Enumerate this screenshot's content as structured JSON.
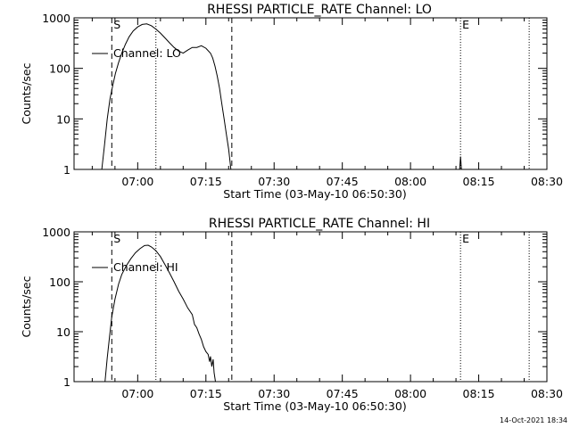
{
  "timestamp": "14-Oct-2021 18:34",
  "chart_data": [
    {
      "type": "line",
      "title": "RHESSI PARTICLE_RATE Channel: LO",
      "xlabel": "Start Time (03-May-10 06:50:30)",
      "ylabel": "Counts/sec",
      "yscale": "log",
      "ylim": [
        1,
        1000
      ],
      "xlim_minutes": [
        -4.5,
        99.5
      ],
      "xticks": [
        {
          "min": 9.5,
          "label": "07:00"
        },
        {
          "min": 24.5,
          "label": "07:15"
        },
        {
          "min": 39.5,
          "label": "07:30"
        },
        {
          "min": 54.5,
          "label": "07:45"
        },
        {
          "min": 69.5,
          "label": "08:00"
        },
        {
          "min": 84.5,
          "label": "08:15"
        },
        {
          "min": 99.5,
          "label": "08:30"
        }
      ],
      "yticks": [
        {
          "v": 1,
          "label": "1"
        },
        {
          "v": 10,
          "label": "10"
        },
        {
          "v": 100,
          "label": "100"
        },
        {
          "v": 1000,
          "label": "1000"
        }
      ],
      "legend": "Channel: LO",
      "markers": [
        {
          "min": 3.8,
          "style": "dashed",
          "label": "S"
        },
        {
          "min": 13.5,
          "style": "dotted",
          "label": ""
        },
        {
          "min": 30.2,
          "style": "dashed",
          "label": ""
        },
        {
          "min": 80.5,
          "style": "dotted",
          "label": "E"
        },
        {
          "min": 95.6,
          "style": "dotted",
          "label": ""
        }
      ],
      "series": [
        {
          "name": "Channel: LO",
          "points": [
            [
              1.6,
              1
            ],
            [
              2.2,
              3
            ],
            [
              2.8,
              10
            ],
            [
              3.4,
              25
            ],
            [
              4.0,
              45
            ],
            [
              4.6,
              80
            ],
            [
              5.3,
              130
            ],
            [
              6.0,
              200
            ],
            [
              6.8,
              300
            ],
            [
              7.6,
              420
            ],
            [
              8.5,
              550
            ],
            [
              9.5,
              660
            ],
            [
              10.5,
              740
            ],
            [
              11.5,
              760
            ],
            [
              12.5,
              700
            ],
            [
              13.5,
              600
            ],
            [
              14.5,
              500
            ],
            [
              15.5,
              400
            ],
            [
              16.5,
              320
            ],
            [
              17.5,
              260
            ],
            [
              18.5,
              220
            ],
            [
              19.5,
              200
            ],
            [
              20.5,
              230
            ],
            [
              21.5,
              260
            ],
            [
              22.5,
              260
            ],
            [
              23.5,
              280
            ],
            [
              24.5,
              250
            ],
            [
              25.5,
              200
            ],
            [
              26.0,
              160
            ],
            [
              26.5,
              110
            ],
            [
              27.0,
              70
            ],
            [
              27.5,
              40
            ],
            [
              28.0,
              20
            ],
            [
              28.5,
              10
            ],
            [
              29.0,
              5
            ],
            [
              29.5,
              2.5
            ],
            [
              30.0,
              1
            ]
          ]
        },
        {
          "name": "Channel: LO",
          "points": [
            [
              80.3,
              1
            ],
            [
              80.5,
              1.8
            ],
            [
              80.7,
              1
            ]
          ]
        }
      ]
    },
    {
      "type": "line",
      "title": "RHESSI PARTICLE_RATE Channel: HI",
      "xlabel": "Start Time (03-May-10 06:50:30)",
      "ylabel": "Counts/sec",
      "yscale": "log",
      "ylim": [
        1,
        1000
      ],
      "xlim_minutes": [
        -4.5,
        99.5
      ],
      "xticks": [
        {
          "min": 9.5,
          "label": "07:00"
        },
        {
          "min": 24.5,
          "label": "07:15"
        },
        {
          "min": 39.5,
          "label": "07:30"
        },
        {
          "min": 54.5,
          "label": "07:45"
        },
        {
          "min": 69.5,
          "label": "08:00"
        },
        {
          "min": 84.5,
          "label": "08:15"
        },
        {
          "min": 99.5,
          "label": "08:30"
        }
      ],
      "yticks": [
        {
          "v": 1,
          "label": "1"
        },
        {
          "v": 10,
          "label": "10"
        },
        {
          "v": 100,
          "label": "100"
        },
        {
          "v": 1000,
          "label": "1000"
        }
      ],
      "legend": "Channel: HI",
      "markers": [
        {
          "min": 3.8,
          "style": "dashed",
          "label": "S"
        },
        {
          "min": 13.5,
          "style": "dotted",
          "label": ""
        },
        {
          "min": 30.2,
          "style": "dashed",
          "label": ""
        },
        {
          "min": 80.5,
          "style": "dotted",
          "label": "E"
        },
        {
          "min": 95.6,
          "style": "dotted",
          "label": ""
        }
      ],
      "series": [
        {
          "name": "Channel: HI",
          "points": [
            [
              2.3,
              1
            ],
            [
              2.8,
              3
            ],
            [
              3.3,
              8
            ],
            [
              3.8,
              20
            ],
            [
              4.5,
              45
            ],
            [
              5.3,
              90
            ],
            [
              6.0,
              140
            ],
            [
              7.0,
              210
            ],
            [
              8.0,
              290
            ],
            [
              9.0,
              380
            ],
            [
              10.0,
              460
            ],
            [
              11.0,
              530
            ],
            [
              11.8,
              540
            ],
            [
              12.5,
              500
            ],
            [
              13.5,
              420
            ],
            [
              14.5,
              320
            ],
            [
              15.5,
              220
            ],
            [
              16.5,
              150
            ],
            [
              17.5,
              100
            ],
            [
              18.5,
              65
            ],
            [
              19.5,
              45
            ],
            [
              20.5,
              30
            ],
            [
              21.5,
              22
            ],
            [
              22.0,
              14
            ],
            [
              22.5,
              12
            ],
            [
              23.0,
              9
            ],
            [
              23.5,
              7
            ],
            [
              24.0,
              5
            ],
            [
              24.5,
              4
            ],
            [
              25.0,
              3.5
            ],
            [
              25.3,
              2.5
            ],
            [
              25.5,
              3.2
            ],
            [
              25.8,
              2
            ],
            [
              26.1,
              2.8
            ],
            [
              26.3,
              1.5
            ],
            [
              26.6,
              1
            ]
          ]
        }
      ]
    }
  ]
}
